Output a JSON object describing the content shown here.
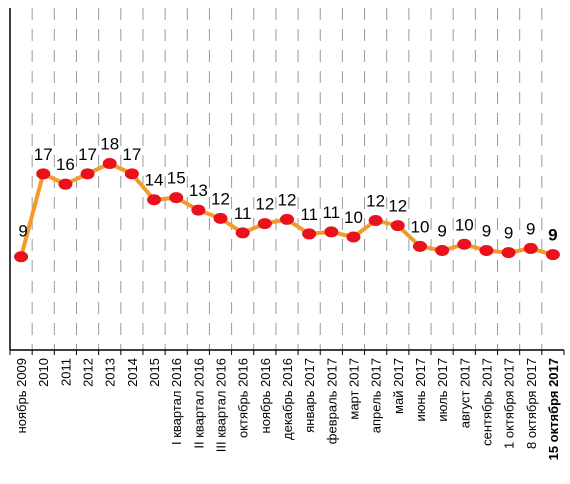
{
  "chart_data": {
    "type": "line",
    "title": "",
    "xlabel": "",
    "ylabel": "",
    "grid": true,
    "highlight_last": true,
    "colors": {
      "line": "#f39b2a",
      "marker": "#e8111c",
      "grid": "#9a9a9a",
      "axis": "#000000"
    },
    "categories": [
      "ноябрь 2009",
      "2010",
      "2011",
      "2012",
      "2013",
      "2014",
      "2015",
      "I квартал 2016",
      "II квартал 2016",
      "III квартал 2016",
      "октябрь 2016",
      "ноябрь 2016",
      "декабрь 2016",
      "январь 2017",
      "февраль 2017",
      "март 2017",
      "апрель 2017",
      "май 2017",
      "июнь 2017",
      "июль 2017",
      "август 2017",
      "сентябрь 2017",
      "1 октября 2017",
      "8 октября 2017",
      "15 октября 2017"
    ],
    "values": [
      9,
      17,
      16,
      17,
      18,
      17,
      14,
      15,
      13,
      12,
      11,
      12,
      12,
      11,
      11,
      10,
      12,
      12,
      10,
      9,
      10,
      9,
      9,
      9,
      9
    ],
    "y_plot": [
      9,
      17,
      16,
      17,
      18,
      17,
      14.5,
      14.7,
      13.5,
      12.7,
      11.3,
      12.2,
      12.6,
      11.2,
      11.4,
      10.9,
      12.5,
      12,
      10,
      9.6,
      10.2,
      9.6,
      9.4,
      9.8,
      9.2
    ],
    "ylim": [
      0,
      33
    ]
  }
}
